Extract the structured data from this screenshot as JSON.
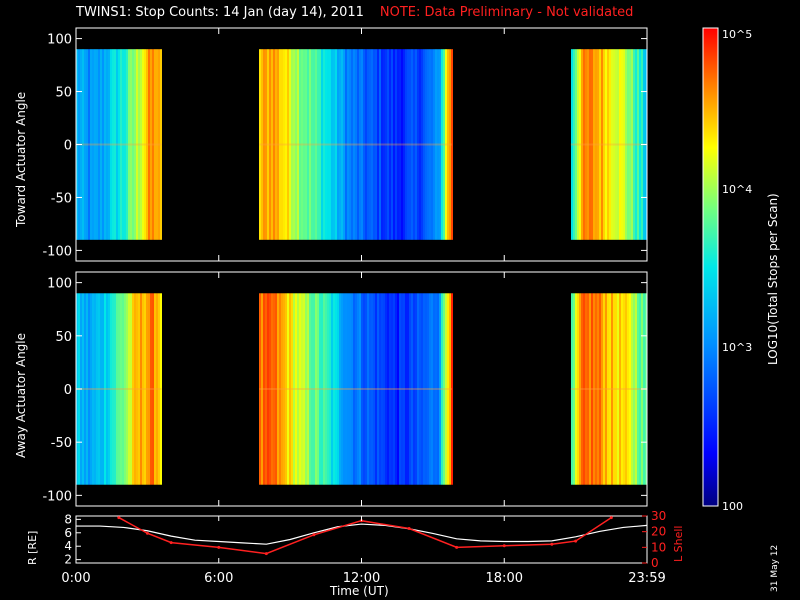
{
  "title": {
    "main": "TWINS1: Stop Counts: 14 Jan (day  14), 2011",
    "note": "NOTE: Data Preliminary - Not validated"
  },
  "stamp": "31 May 12",
  "colorbar": {
    "label": "LOG10(Total Stops per Scan)",
    "ticks": [
      "10^5",
      "10^4",
      "10^3",
      "100"
    ],
    "scale": "log",
    "range": [
      100,
      100000
    ]
  },
  "colors": {
    "note": "#ff2020",
    "lshell": "#ff2020",
    "radius": "#ffffff",
    "background": "#000000"
  },
  "chart_data": [
    {
      "type": "heatmap",
      "panel": "toward",
      "ylabel": "Toward Actuator Angle",
      "ylim": [
        -110,
        110
      ],
      "yticks": [
        100,
        50,
        0,
        -50,
        -100
      ],
      "angle_range": [
        -90,
        90
      ],
      "x_unit": "hours UT",
      "xlim": [
        0,
        24
      ],
      "data_intervals": [
        [
          0.0,
          3.6
        ],
        [
          7.7,
          15.8
        ],
        [
          20.8,
          24.0
        ]
      ],
      "value_profile_log10": {
        "t": [
          0.0,
          0.5,
          1.0,
          1.5,
          2.0,
          2.5,
          3.0,
          3.3,
          3.6,
          7.7,
          8.2,
          8.8,
          9.5,
          10.5,
          11.5,
          12.5,
          13.5,
          14.5,
          15.2,
          15.6,
          15.8,
          20.8,
          21.2,
          21.6,
          22.0,
          22.5,
          23.0,
          23.5,
          24.0
        ],
        "v": [
          3.2,
          3.0,
          3.1,
          3.4,
          3.6,
          4.0,
          4.5,
          4.6,
          4.2,
          4.4,
          4.6,
          4.3,
          3.9,
          3.5,
          2.9,
          2.7,
          2.5,
          2.7,
          3.0,
          4.5,
          4.8,
          3.5,
          4.5,
          4.6,
          4.5,
          4.3,
          4.1,
          3.7,
          3.3
        ]
      }
    },
    {
      "type": "heatmap",
      "panel": "away",
      "ylabel": "Away Actuator Angle",
      "ylim": [
        -110,
        110
      ],
      "yticks": [
        100,
        50,
        0,
        -50,
        -100
      ],
      "angle_range": [
        -90,
        90
      ],
      "x_unit": "hours UT",
      "xlim": [
        0,
        24
      ],
      "data_intervals": [
        [
          0.0,
          3.6
        ],
        [
          7.7,
          15.8
        ],
        [
          20.8,
          24.0
        ]
      ],
      "value_profile_log10": {
        "t": [
          0.0,
          0.5,
          1.0,
          1.5,
          2.0,
          2.5,
          3.0,
          3.3,
          3.6,
          7.7,
          8.2,
          8.8,
          9.5,
          10.5,
          11.5,
          12.5,
          13.5,
          14.5,
          15.2,
          15.6,
          15.8,
          20.8,
          21.2,
          21.6,
          22.0,
          22.5,
          23.0,
          23.5,
          24.0
        ],
        "v": [
          3.3,
          3.1,
          3.3,
          3.6,
          3.9,
          4.4,
          4.6,
          4.6,
          4.3,
          4.6,
          4.7,
          4.4,
          4.0,
          3.6,
          3.0,
          2.7,
          2.5,
          2.7,
          3.0,
          4.5,
          4.8,
          3.6,
          4.6,
          4.7,
          4.6,
          4.4,
          4.3,
          4.0,
          3.6
        ]
      }
    },
    {
      "type": "line",
      "panel": "orbit",
      "xlabel": "Time (UT)",
      "xticks": [
        "0:00",
        "6:00",
        "12:00",
        "18:00",
        "23:59"
      ],
      "xtick_hours": [
        0,
        6,
        12,
        18,
        24
      ],
      "series": [
        {
          "name": "R [RE]",
          "axis": "left",
          "ylim": [
            1.5,
            8.5
          ],
          "yticks": [
            "2",
            "4",
            "6",
            "8"
          ],
          "x": [
            0,
            1,
            2,
            3,
            4,
            5,
            6,
            7,
            8,
            9,
            10,
            11,
            12,
            13,
            14,
            15,
            16,
            17,
            18,
            19,
            20,
            21,
            22,
            23,
            24
          ],
          "y": [
            7.0,
            7.0,
            6.8,
            6.3,
            5.5,
            4.9,
            4.7,
            4.5,
            4.3,
            5.0,
            6.0,
            6.9,
            7.3,
            7.1,
            6.6,
            5.9,
            5.1,
            4.8,
            4.7,
            4.7,
            4.8,
            5.4,
            6.2,
            6.8,
            7.1
          ]
        },
        {
          "name": "L Shell",
          "axis": "right",
          "ylim": [
            0,
            30
          ],
          "yticks": [
            "0",
            "10",
            "20",
            "30"
          ],
          "x": [
            1.8,
            3.0,
            4.0,
            6.0,
            8.0,
            10.0,
            12.0,
            14.0,
            16.0,
            18.0,
            20.0,
            21.0,
            22.5
          ],
          "y": [
            29,
            19,
            13,
            10,
            6,
            18,
            27,
            22,
            10,
            11,
            12,
            14,
            29
          ]
        }
      ]
    }
  ]
}
